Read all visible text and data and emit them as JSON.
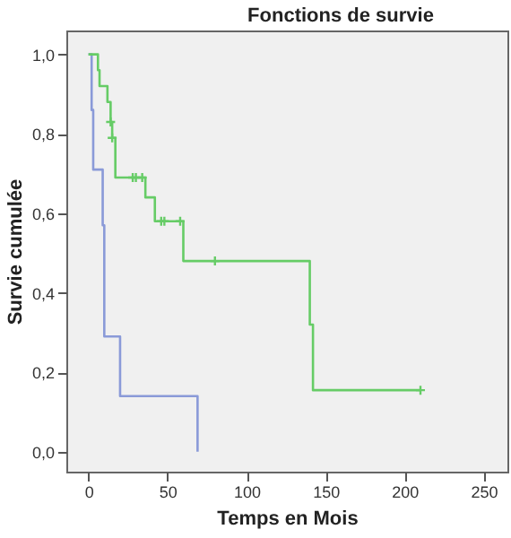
{
  "chart_data": {
    "type": "step",
    "title": "Fonctions de survie",
    "xlabel": "Temps en Mois",
    "ylabel": "Survie cumulée",
    "xlim": [
      -14,
      265
    ],
    "ylim": [
      -0.05,
      1.06
    ],
    "xticks": [
      0,
      50,
      100,
      150,
      200,
      250
    ],
    "yticks": [
      {
        "value": 0,
        "label": "0,0"
      },
      {
        "value": 0.2,
        "label": "0,2"
      },
      {
        "value": 0.4,
        "label": "0,4"
      },
      {
        "value": 0.6,
        "label": "0,6"
      },
      {
        "value": 0.8,
        "label": "0,8"
      },
      {
        "value": 1,
        "label": "1,0"
      }
    ],
    "grid": false,
    "marker": "none",
    "line_style": "solid",
    "series": [
      {
        "color": "#8a9ad8",
        "x": [
          0,
          2,
          3,
          9,
          10,
          20,
          69
        ],
        "values": [
          1,
          0.86,
          0.71,
          0.57,
          0.29,
          0.14,
          0
        ]
      },
      {
        "color": "#66cc66",
        "x": [
          0,
          6,
          7,
          12,
          14,
          15,
          17,
          36,
          42,
          60,
          140,
          142,
          210
        ],
        "values": [
          1,
          0.96,
          0.92,
          0.88,
          0.83,
          0.79,
          0.69,
          0.64,
          0.58,
          0.48,
          0.32,
          0.155,
          0.155
        ]
      },
      {
        "type": "scatter",
        "marker": "cross",
        "color": "#66cc66",
        "x": [
          14,
          15,
          28,
          30,
          34,
          46,
          48,
          58,
          80,
          210
        ],
        "values": [
          0.83,
          0.79,
          0.69,
          0.69,
          0.69,
          0.58,
          0.58,
          0.58,
          0.48,
          0.155
        ]
      }
    ]
  }
}
